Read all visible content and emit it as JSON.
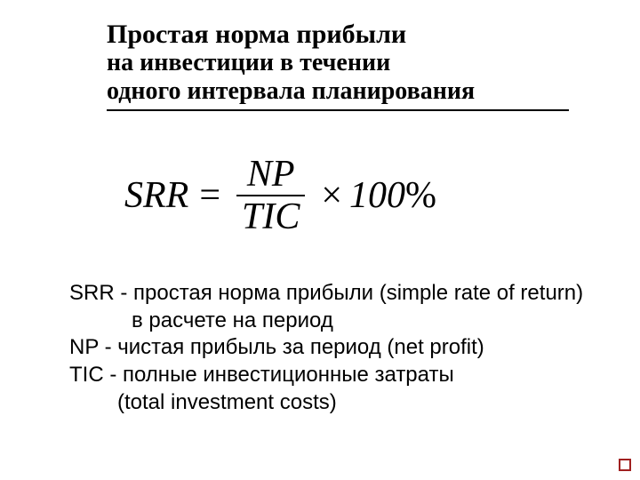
{
  "title": {
    "line1": "Простая норма прибыли",
    "line2": "на инвестиции в течении",
    "line3": "одного интервала планирования"
  },
  "formula": {
    "lhs": "SRR",
    "eq": "=",
    "numerator": "NP",
    "denominator": "TIC",
    "multiply": "×",
    "hundred": "100",
    "percent": "%"
  },
  "definitions": {
    "srr_line1": "SRR - простая норма прибыли (simple rate of return)",
    "srr_line2": "в расчете на период",
    "np_line": "NP - чистая прибыль за период (net profit)",
    "tic_line1": "TIC - полные инвестиционные затраты",
    "tic_line2": "(total investment costs)"
  },
  "styling": {
    "background_color": "#ffffff",
    "text_color": "#000000",
    "title_font": "Times New Roman",
    "title_bold_size_pt": 30,
    "title_regular_size_pt": 28,
    "formula_font": "Times New Roman",
    "formula_size_pt": 42,
    "formula_style": "italic",
    "def_font": "Arial",
    "def_size_pt": 24,
    "underline_color": "#000000",
    "corner_box_color": "#a02020"
  }
}
